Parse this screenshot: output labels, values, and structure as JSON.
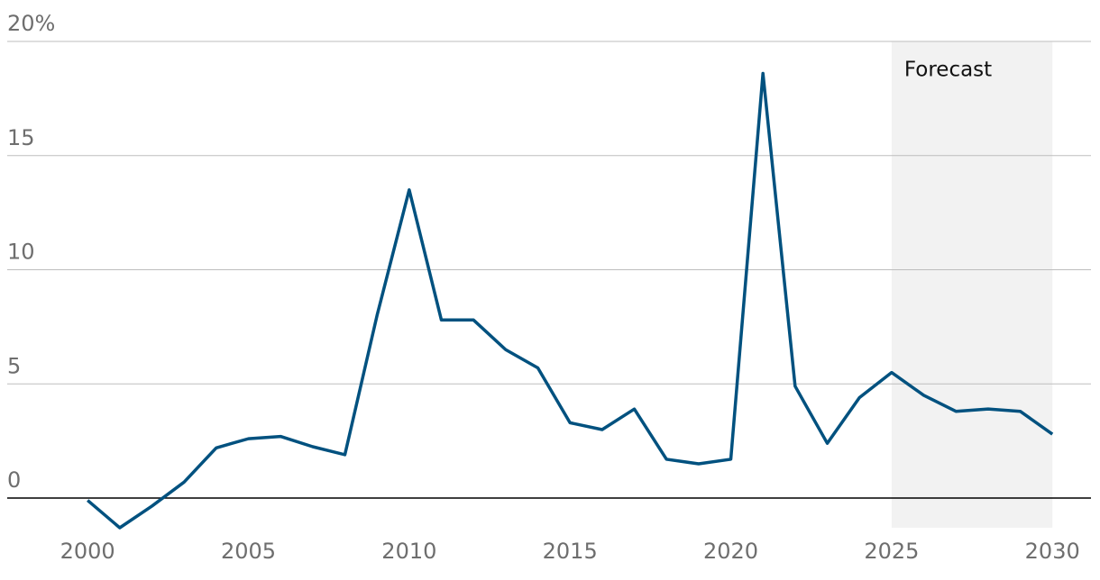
{
  "chart_data": {
    "type": "line",
    "x": [
      2000,
      2001,
      2002,
      2003,
      2004,
      2005,
      2006,
      2007,
      2008,
      2009,
      2010,
      2011,
      2012,
      2013,
      2014,
      2015,
      2016,
      2017,
      2018,
      2019,
      2020,
      2021,
      2022,
      2023,
      2024,
      2025,
      2026,
      2027,
      2028,
      2029,
      2030
    ],
    "series": [
      {
        "color": "#00517f",
        "values": [
          -0.1,
          -1.3,
          -0.35,
          0.7,
          2.2,
          2.6,
          2.7,
          2.25,
          1.9,
          8.0,
          13.5,
          7.8,
          7.8,
          6.5,
          5.7,
          3.3,
          3.0,
          3.9,
          1.7,
          1.5,
          1.7,
          18.6,
          4.9,
          2.4,
          4.4,
          5.5,
          4.5,
          3.8,
          3.9,
          3.8,
          2.8
        ]
      }
    ],
    "xlim": [
      1997.5,
      2031.2
    ],
    "ylim": [
      -1.3,
      20
    ],
    "xticks": [
      2000,
      2005,
      2010,
      2015,
      2020,
      2025,
      2030
    ],
    "yticks": [
      0,
      5,
      10,
      15,
      {
        "value": 20,
        "label": "20%"
      }
    ],
    "grid": true,
    "shaded_region": {
      "label": "Forecast",
      "x": [
        2025,
        2030
      ]
    }
  }
}
